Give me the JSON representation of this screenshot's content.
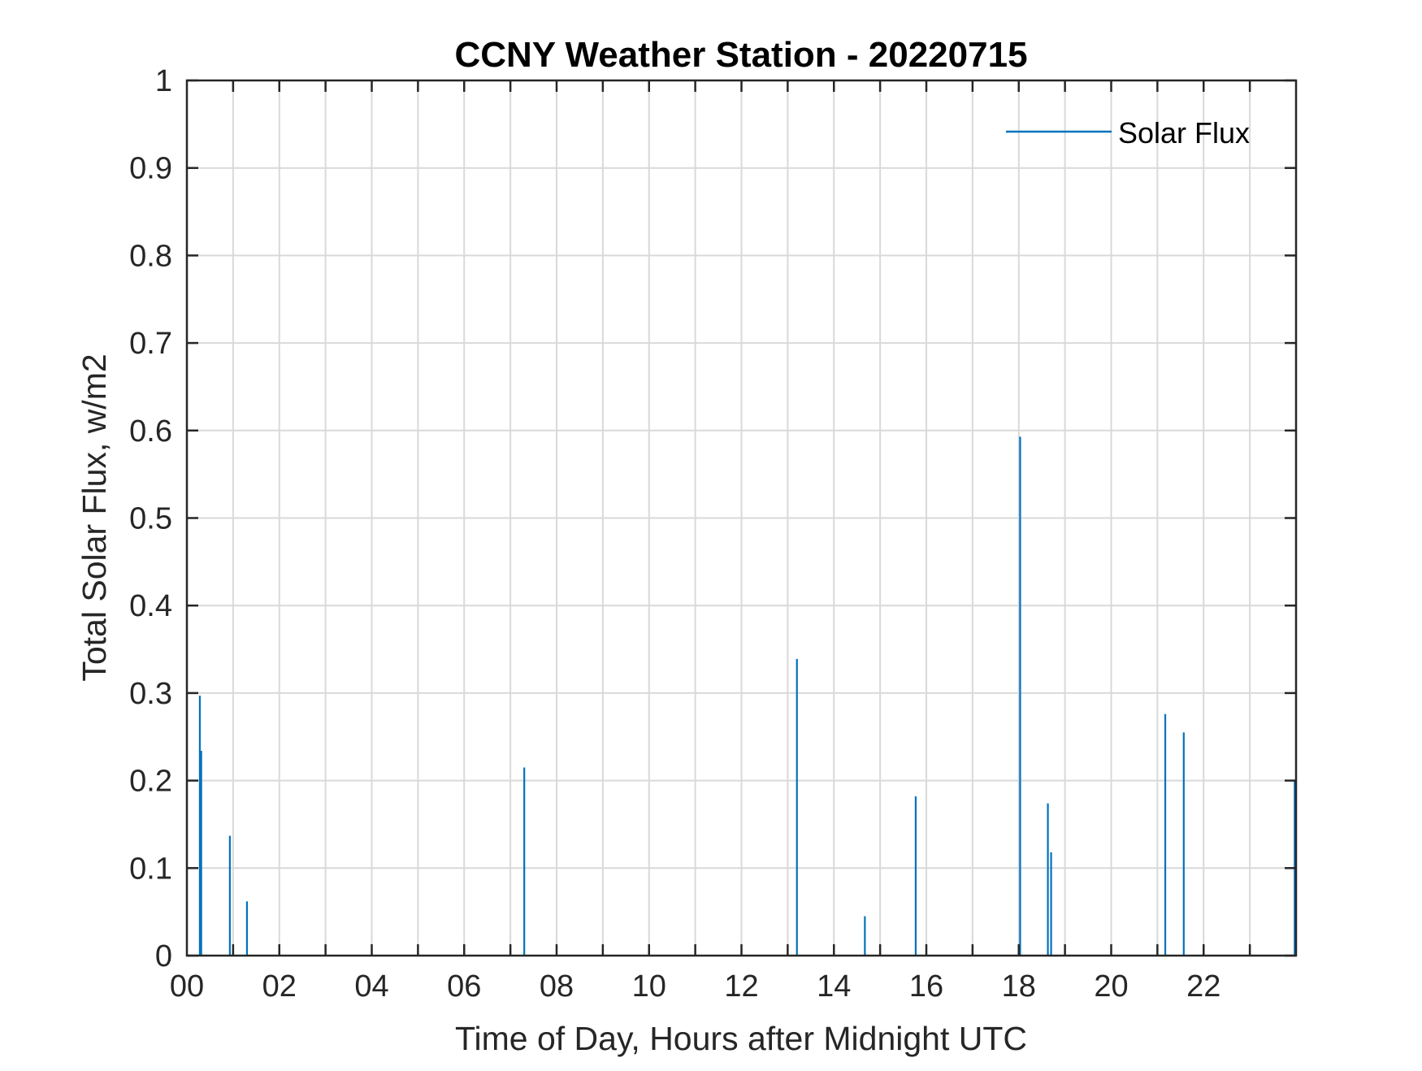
{
  "chart_data": {
    "type": "line",
    "title": "CCNY Weather Station - 20220715",
    "xlabel": "Time of Day, Hours after Midnight UTC",
    "ylabel": "Total Solar Flux, w/m2",
    "xlim": [
      0,
      24
    ],
    "ylim": [
      0,
      1
    ],
    "grid": true,
    "x_minor_grid_hours": 1,
    "x_ticks": [
      {
        "value": 0,
        "label": "00"
      },
      {
        "value": 2,
        "label": "02"
      },
      {
        "value": 4,
        "label": "04"
      },
      {
        "value": 6,
        "label": "06"
      },
      {
        "value": 8,
        "label": "08"
      },
      {
        "value": 10,
        "label": "10"
      },
      {
        "value": 12,
        "label": "12"
      },
      {
        "value": 14,
        "label": "14"
      },
      {
        "value": 16,
        "label": "16"
      },
      {
        "value": 18,
        "label": "18"
      },
      {
        "value": 20,
        "label": "20"
      },
      {
        "value": 22,
        "label": "22"
      }
    ],
    "y_ticks": [
      {
        "value": 0,
        "label": "0"
      },
      {
        "value": 0.1,
        "label": "0.1"
      },
      {
        "value": 0.2,
        "label": "0.2"
      },
      {
        "value": 0.3,
        "label": "0.3"
      },
      {
        "value": 0.4,
        "label": "0.4"
      },
      {
        "value": 0.5,
        "label": "0.5"
      },
      {
        "value": 0.6,
        "label": "0.6"
      },
      {
        "value": 0.7,
        "label": "0.7"
      },
      {
        "value": 0.8,
        "label": "0.8"
      },
      {
        "value": 0.9,
        "label": "0.9"
      },
      {
        "value": 1,
        "label": "1"
      }
    ],
    "legend_position": "top-right",
    "series": [
      {
        "name": "Solar Flux",
        "color": "#0072BD",
        "spikes": [
          {
            "x": 0.28,
            "y": 0.297
          },
          {
            "x": 0.31,
            "y": 0.234
          },
          {
            "x": 0.93,
            "y": 0.137
          },
          {
            "x": 1.3,
            "y": 0.062
          },
          {
            "x": 7.3,
            "y": 0.215
          },
          {
            "x": 13.2,
            "y": 0.339
          },
          {
            "x": 14.67,
            "y": 0.045
          },
          {
            "x": 15.77,
            "y": 0.182
          },
          {
            "x": 18.03,
            "y": 0.593
          },
          {
            "x": 18.63,
            "y": 0.174
          },
          {
            "x": 18.7,
            "y": 0.118
          },
          {
            "x": 21.17,
            "y": 0.276
          },
          {
            "x": 21.57,
            "y": 0.255
          },
          {
            "x": 23.97,
            "y": 0.2
          }
        ]
      }
    ]
  }
}
